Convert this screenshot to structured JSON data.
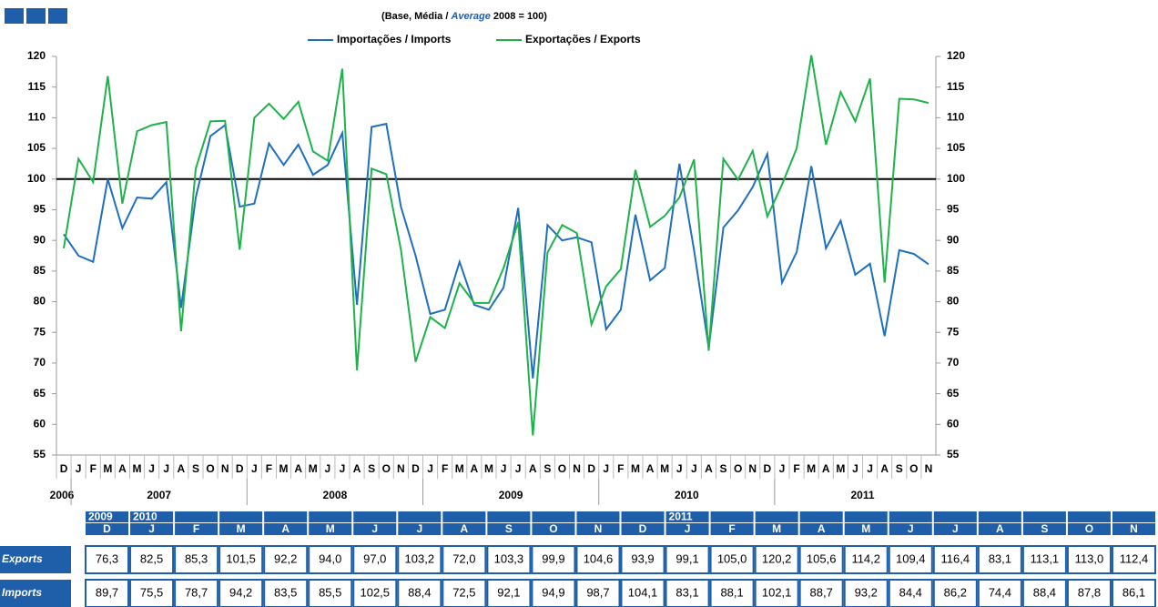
{
  "chart_data": {
    "type": "line",
    "subtitle_parts": [
      "(Base, Média / ",
      "Average",
      " 2008 = 100)"
    ],
    "categories": [
      "D",
      "J",
      "F",
      "M",
      "A",
      "M",
      "J",
      "J",
      "A",
      "S",
      "O",
      "N",
      "D",
      "J",
      "F",
      "M",
      "A",
      "M",
      "J",
      "J",
      "A",
      "S",
      "O",
      "N",
      "D",
      "J",
      "F",
      "M",
      "A",
      "M",
      "J",
      "J",
      "A",
      "S",
      "O",
      "N",
      "D",
      "J",
      "F",
      "M",
      "A",
      "M",
      "J",
      "J",
      "A",
      "S",
      "O",
      "N",
      "D",
      "J",
      "F",
      "M",
      "A",
      "M",
      "J",
      "J",
      "A",
      "S",
      "O",
      "N"
    ],
    "years": [
      "2006",
      "2007",
      "2008",
      "2009",
      "2010",
      "2011"
    ],
    "series": [
      {
        "name": "Importações / Imports",
        "color": "#1f6fbf",
        "values": [
          91,
          87.5,
          86.5,
          100,
          92,
          97,
          96.8,
          99.5,
          79,
          97,
          107,
          108.8,
          95.5,
          96,
          105.8,
          102.3,
          105.6,
          100.7,
          102.3,
          107.5,
          79.5,
          108.5,
          109,
          95.5,
          87.5,
          78,
          78.7,
          86.5,
          79.5,
          78.7,
          82.3,
          95.3,
          67.5,
          92.5,
          90,
          90.5,
          89.7,
          75.5,
          78.7,
          94.2,
          83.5,
          85.5,
          102.5,
          88.4,
          72.5,
          92.1,
          94.9,
          98.7,
          104.1,
          83.1,
          88.1,
          102.1,
          88.7,
          93.2,
          84.4,
          86.2,
          74.4,
          88.4,
          87.8,
          86.1
        ]
      },
      {
        "name": "Exportações / Exports",
        "color": "#1db34a",
        "values": [
          88.7,
          103.3,
          99.5,
          116.8,
          96,
          107.8,
          108.8,
          109.3,
          75.2,
          101.7,
          109.4,
          109.5,
          88.5,
          110,
          112.3,
          109.8,
          112.6,
          104.5,
          103,
          118,
          68.8,
          101.7,
          100.8,
          88.5,
          70.2,
          77.5,
          75.7,
          83,
          79.8,
          79.8,
          85.5,
          93,
          58.2,
          88,
          92.5,
          91.2,
          76.3,
          82.5,
          85.3,
          101.5,
          92.2,
          94.0,
          97.0,
          103.2,
          72.0,
          103.3,
          99.9,
          104.6,
          93.9,
          99.1,
          105.0,
          120.2,
          105.6,
          114.2,
          109.4,
          116.4,
          83.1,
          113.1,
          113.0,
          112.4
        ]
      }
    ],
    "ylim": [
      55,
      120
    ],
    "yticks": [
      55,
      60,
      65,
      70,
      75,
      80,
      85,
      90,
      95,
      100,
      105,
      110,
      115,
      120
    ],
    "y2lim": [
      55,
      120
    ],
    "y2ticks": [
      55,
      60,
      65,
      70,
      75,
      80,
      85,
      90,
      95,
      100,
      105,
      110,
      115,
      120
    ],
    "reference_line": 100
  },
  "table": {
    "year_row": [
      "2009",
      "2010",
      null,
      null,
      null,
      null,
      null,
      null,
      null,
      null,
      null,
      null,
      null,
      "2011",
      null,
      null,
      null,
      null,
      null,
      null,
      null,
      null,
      null,
      null
    ],
    "month_row": [
      "D",
      "J",
      "F",
      "M",
      "A",
      "M",
      "J",
      "J",
      "A",
      "S",
      "O",
      "N",
      "D",
      "J",
      "F",
      "M",
      "A",
      "M",
      "J",
      "J",
      "A",
      "S",
      "O",
      "N"
    ],
    "rows": [
      {
        "label": "Exports",
        "cells": [
          "76,3",
          "82,5",
          "85,3",
          "101,5",
          "92,2",
          "94,0",
          "97,0",
          "103,2",
          "72,0",
          "103,3",
          "99,9",
          "104,6",
          "93,9",
          "99,1",
          "105,0",
          "120,2",
          "105,6",
          "114,2",
          "109,4",
          "116,4",
          "83,1",
          "113,1",
          "113,0",
          "112,4"
        ]
      },
      {
        "label": "Imports",
        "cells": [
          "89,7",
          "75,5",
          "78,7",
          "94,2",
          "83,5",
          "85,5",
          "102,5",
          "88,4",
          "72,5",
          "92,1",
          "94,9",
          "98,7",
          "104,1",
          "83,1",
          "88,1",
          "102,1",
          "88,7",
          "93,2",
          "84,4",
          "86,2",
          "74,4",
          "88,4",
          "87,8",
          "86,1"
        ]
      }
    ]
  }
}
